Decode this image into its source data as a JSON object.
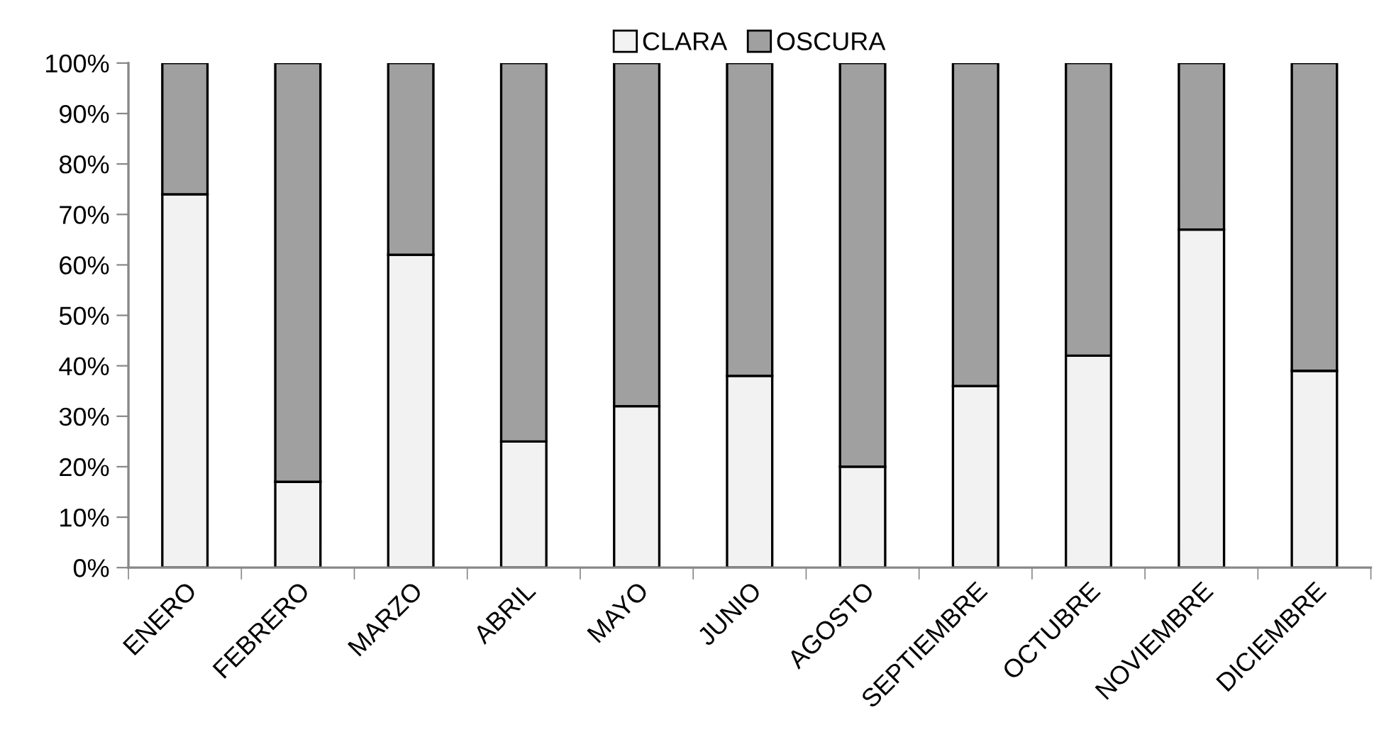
{
  "chart_data": {
    "type": "bar",
    "stacked": true,
    "categories": [
      "ENERO",
      "FEBRERO",
      "MARZO",
      "ABRIL",
      "MAYO",
      "JUNIO",
      "AGOSTO",
      "SEPTIEMBRE",
      "OCTUBRE",
      "NOVIEMBRE",
      "DICIEMBRE"
    ],
    "series": [
      {
        "name": "CLARA",
        "color": "#f2f2f2",
        "values": [
          74,
          17,
          62,
          25,
          32,
          38,
          20,
          36,
          42,
          67,
          39
        ]
      },
      {
        "name": "OSCURA",
        "color": "#a0a0a0",
        "values": [
          26,
          83,
          38,
          75,
          68,
          62,
          80,
          64,
          58,
          33,
          61
        ]
      }
    ],
    "ylim": [
      0,
      100
    ],
    "yticks": [
      {
        "value": 0,
        "label": "0%"
      },
      {
        "value": 10,
        "label": "10%"
      },
      {
        "value": 20,
        "label": "20%"
      },
      {
        "value": 30,
        "label": "30%"
      },
      {
        "value": 40,
        "label": "40%"
      },
      {
        "value": 50,
        "label": "50%"
      },
      {
        "value": 60,
        "label": "60%"
      },
      {
        "value": 70,
        "label": "70%"
      },
      {
        "value": 80,
        "label": "80%"
      },
      {
        "value": 90,
        "label": "90%"
      },
      {
        "value": 100,
        "label": "100%"
      }
    ],
    "grid": false,
    "legend": "top"
  }
}
